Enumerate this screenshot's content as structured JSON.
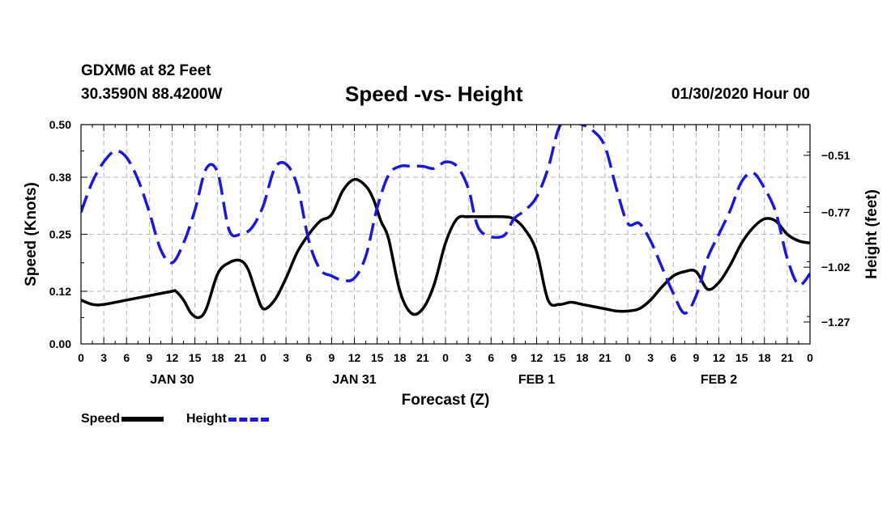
{
  "header": {
    "station": "GDXM6 at 82 Feet",
    "coords": "30.3590N 88.4200W",
    "title": "Speed -vs- Height",
    "date": "01/30/2020 Hour 00"
  },
  "legend": {
    "speed_label": "Speed",
    "height_label": "Height"
  },
  "colors": {
    "speed": "#000000",
    "height": "#1a1ad6",
    "grid": "#b4b4b4"
  },
  "chart_data": {
    "type": "line",
    "title": "Speed -vs- Height",
    "xlabel": "Forecast (Z)",
    "ylabel": "Speed (Knots)",
    "y2label": "Height (feet)",
    "x_range": [
      0,
      96
    ],
    "ylim": [
      0.0,
      0.5
    ],
    "y2lim": [
      -1.37,
      -0.37
    ],
    "grid": true,
    "x_tick_labels": [
      "0",
      "3",
      "6",
      "9",
      "12",
      "15",
      "18",
      "21",
      "0",
      "3",
      "6",
      "9",
      "12",
      "15",
      "18",
      "21",
      "0",
      "3",
      "6",
      "9",
      "12",
      "15",
      "18",
      "21",
      "0",
      "3",
      "6",
      "9",
      "12",
      "15",
      "18",
      "21",
      "0"
    ],
    "x_day_labels": [
      {
        "label": "JAN 30",
        "hour": 12
      },
      {
        "label": "JAN 31",
        "hour": 36
      },
      {
        "label": "FEB 1",
        "hour": 60
      },
      {
        "label": "FEB 2",
        "hour": 84
      }
    ],
    "y_ticks": [
      0.0,
      0.12,
      0.25,
      0.38,
      0.5
    ],
    "y_tick_labels": [
      "0.00",
      "0.12",
      "0.25",
      "0.38",
      "0.50"
    ],
    "y2_ticks": [
      -1.27,
      -1.02,
      -0.77,
      -0.51
    ],
    "y2_tick_labels": [
      "−1.27",
      "−1.02",
      "−0.77",
      "−0.51"
    ],
    "series": [
      {
        "name": "Speed",
        "axis": "left",
        "style": "solid",
        "x": [
          0,
          1.5,
          3,
          6,
          9,
          12,
          12.5,
          13.5,
          14.5,
          15.5,
          16.5,
          18,
          19.5,
          21,
          22,
          23,
          24,
          25.5,
          27,
          28.5,
          30,
          31.5,
          33,
          34.5,
          36,
          37.5,
          38.5,
          39.5,
          40.5,
          42,
          43.5,
          45,
          46.5,
          48,
          49.5,
          51,
          52.5,
          55.5,
          57,
          58.5,
          60,
          61.5,
          63,
          64.5,
          66,
          67.5,
          69,
          70.5,
          72,
          73.5,
          75,
          76.5,
          78,
          79.5,
          81,
          82.5,
          84,
          85.5,
          87,
          88.5,
          90,
          91.5,
          93,
          94.5,
          96
        ],
        "y": [
          0.1,
          0.09,
          0.09,
          0.1,
          0.11,
          0.12,
          0.12,
          0.1,
          0.07,
          0.06,
          0.08,
          0.16,
          0.185,
          0.19,
          0.17,
          0.12,
          0.08,
          0.1,
          0.15,
          0.21,
          0.25,
          0.28,
          0.295,
          0.35,
          0.375,
          0.36,
          0.33,
          0.28,
          0.24,
          0.12,
          0.07,
          0.08,
          0.135,
          0.23,
          0.285,
          0.29,
          0.29,
          0.29,
          0.285,
          0.26,
          0.21,
          0.1,
          0.09,
          0.095,
          0.09,
          0.085,
          0.08,
          0.075,
          0.075,
          0.08,
          0.1,
          0.13,
          0.155,
          0.165,
          0.165,
          0.125,
          0.14,
          0.18,
          0.23,
          0.265,
          0.285,
          0.28,
          0.25,
          0.235,
          0.23
        ]
      },
      {
        "name": "Height",
        "axis": "right",
        "style": "dashed",
        "x": [
          0,
          1.5,
          3,
          4.5,
          6,
          7.5,
          9,
          10.5,
          12,
          13.5,
          15,
          16.5,
          18,
          19.5,
          21,
          22.5,
          24,
          25.5,
          27,
          28.5,
          30,
          31.5,
          33,
          34.5,
          36,
          37.5,
          39,
          40.5,
          42,
          43.5,
          45,
          46.5,
          48,
          49.5,
          51,
          52.5,
          55.5,
          57,
          58.5,
          60,
          61.5,
          63,
          64.5,
          66,
          67.5,
          69,
          70.5,
          72,
          73.5,
          75,
          76.5,
          78,
          79.5,
          81,
          82.5,
          84,
          85.5,
          87,
          88.5,
          90,
          91.5,
          93,
          94.5,
          96
        ],
        "y": [
          -0.77,
          -0.63,
          -0.54,
          -0.49,
          -0.52,
          -0.62,
          -0.77,
          -0.94,
          -1.0,
          -0.91,
          -0.76,
          -0.57,
          -0.59,
          -0.85,
          -0.87,
          -0.84,
          -0.74,
          -0.57,
          -0.55,
          -0.65,
          -0.9,
          -1.03,
          -1.06,
          -1.08,
          -1.07,
          -0.97,
          -0.75,
          -0.6,
          -0.56,
          -0.56,
          -0.56,
          -0.57,
          -0.54,
          -0.56,
          -0.66,
          -0.85,
          -0.88,
          -0.8,
          -0.76,
          -0.7,
          -0.57,
          -0.38,
          -0.36,
          -0.37,
          -0.4,
          -0.47,
          -0.66,
          -0.82,
          -0.82,
          -0.9,
          -1.02,
          -1.14,
          -1.23,
          -1.15,
          -0.98,
          -0.87,
          -0.76,
          -0.63,
          -0.59,
          -0.66,
          -0.77,
          -0.98,
          -1.1,
          -1.05
        ]
      }
    ]
  }
}
